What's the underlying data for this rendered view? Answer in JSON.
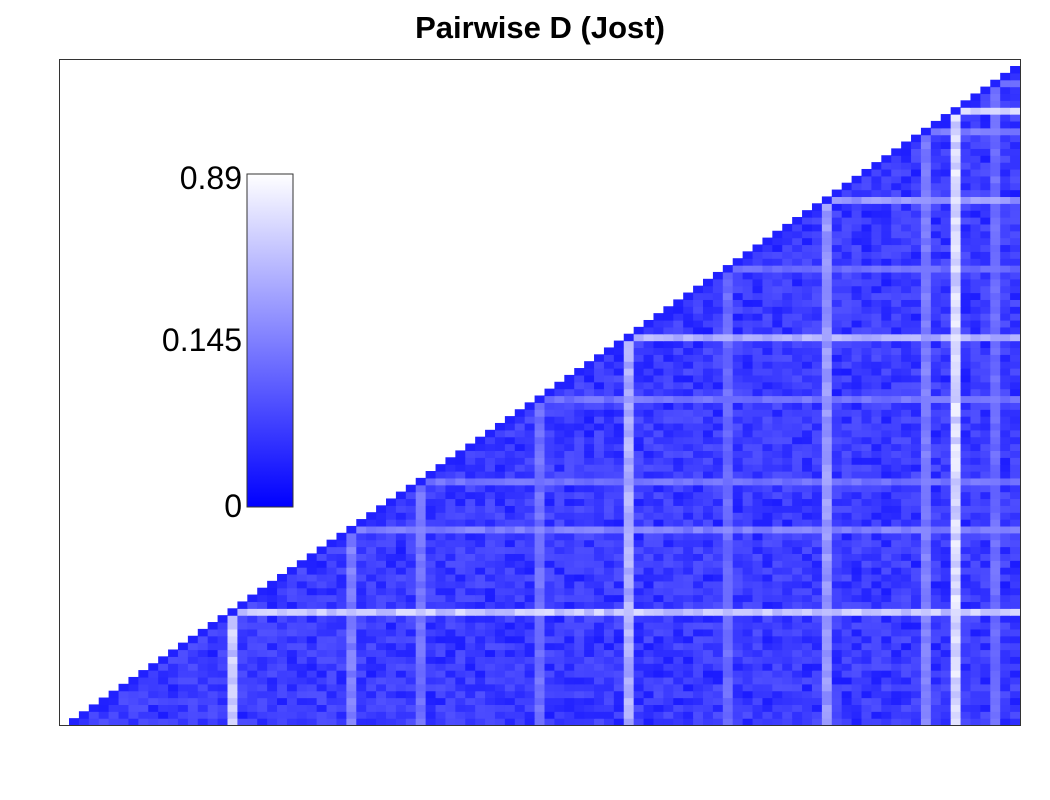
{
  "chart_data": {
    "type": "heatmap",
    "title": "Pairwise D (Jost)",
    "matrix": "lower-triangular pairwise matrix (upper-left half empty)",
    "n_populations": 96,
    "value_range": [
      0,
      0.89
    ],
    "colormap": [
      "#0000ff",
      "#ffffff"
    ],
    "colorbar": {
      "ticks": [
        "0.89",
        "0.145",
        "0"
      ],
      "placement": "upper-left inside plot"
    },
    "baseline_value": 0.05,
    "high_differentiation_populations": [
      {
        "index": 16,
        "value": 0.55
      },
      {
        "index": 28,
        "value": 0.22
      },
      {
        "index": 35,
        "value": 0.18
      },
      {
        "index": 47,
        "value": 0.18
      },
      {
        "index": 56,
        "value": 0.42
      },
      {
        "index": 66,
        "value": 0.16
      },
      {
        "index": 76,
        "value": 0.32
      },
      {
        "index": 86,
        "value": 0.22
      },
      {
        "index": 89,
        "value": 0.65
      },
      {
        "index": 93,
        "value": 0.16
      }
    ]
  }
}
